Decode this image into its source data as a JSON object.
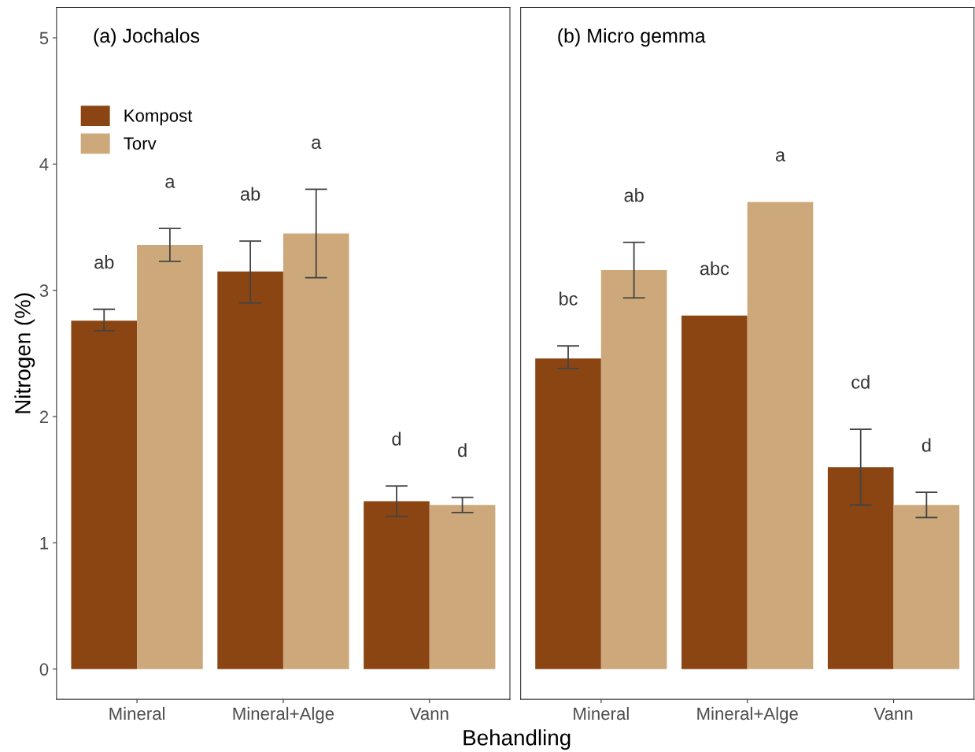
{
  "chart_data": [
    {
      "type": "bar",
      "title": "(a) Jochalos",
      "xlabel": "Behandling",
      "ylabel": "Nitrogen (%)",
      "categories": [
        "Mineral",
        "Mineral+Alge",
        "Vann"
      ],
      "series": [
        {
          "name": "Kompost",
          "color": "#8b4513",
          "values": [
            2.76,
            3.15,
            1.33
          ],
          "errors": [
            [
              2.68,
              2.85
            ],
            [
              2.9,
              3.39
            ],
            [
              1.21,
              1.45
            ]
          ]
        },
        {
          "name": "Torv",
          "color": "#cda87a",
          "values": [
            3.36,
            3.45,
            1.3
          ],
          "errors": [
            [
              3.23,
              3.49
            ],
            [
              3.1,
              3.8
            ],
            [
              1.24,
              1.36
            ]
          ]
        }
      ],
      "annotations": [
        "ab",
        "a",
        "ab",
        "a",
        "d",
        "d"
      ],
      "ylim": [
        -0.24,
        5.24
      ],
      "yticks": [
        0,
        1,
        2,
        3,
        4,
        5
      ],
      "legend": "top left",
      "grid": false
    },
    {
      "type": "bar",
      "title": "(b) Micro gemma",
      "categories": [
        "Mineral",
        "Mineral+Alge",
        "Vann"
      ],
      "series": [
        {
          "color": "#8b4513",
          "values": [
            2.46,
            2.8,
            1.6
          ],
          "errors": [
            [
              2.38,
              2.56
            ],
            null,
            [
              1.3,
              1.9
            ]
          ]
        },
        {
          "color": "#cda87a",
          "values": [
            3.16,
            3.7,
            1.3
          ],
          "errors": [
            [
              2.94,
              3.38
            ],
            null,
            [
              1.2,
              1.4
            ]
          ]
        }
      ],
      "annotations": [
        "bc",
        "ab",
        "abc",
        "a",
        "cd",
        "d"
      ],
      "ylim": [
        -0.24,
        5.24
      ],
      "yticks": [
        0,
        1,
        2,
        3,
        4,
        5
      ],
      "tick_labels": "x",
      "grid": false
    }
  ]
}
